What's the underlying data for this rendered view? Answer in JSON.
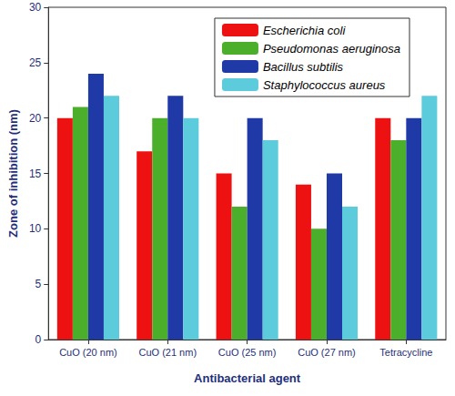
{
  "chart_data": {
    "type": "bar",
    "x_label": "Antibacterial agent",
    "y_label": "Zone of inhibition (nm)",
    "categories": [
      "CuO (20 nm)",
      "CuO (21 nm)",
      "CuO (25 nm)",
      "CuO (27 nm)",
      "Tetracycline"
    ],
    "series": [
      {
        "name": "Escherichia coli",
        "color": "#ee1111",
        "values": [
          20,
          17,
          15,
          14,
          20
        ]
      },
      {
        "name": "Pseudomonas aeruginosa",
        "color": "#4caf2c",
        "values": [
          21,
          20,
          12,
          10,
          18
        ]
      },
      {
        "name": "Bacillus subtilis",
        "color": "#1f3aa6",
        "values": [
          24,
          22,
          20,
          15,
          20
        ]
      },
      {
        "name": "Staphylococcus aureus",
        "color": "#5ccbdc",
        "values": [
          22,
          20,
          18,
          12,
          22
        ]
      }
    ],
    "ylim": [
      0,
      30
    ],
    "yticks": [
      0,
      5,
      10,
      15,
      20,
      25,
      30
    ],
    "legend": "upper right",
    "grid": false
  }
}
